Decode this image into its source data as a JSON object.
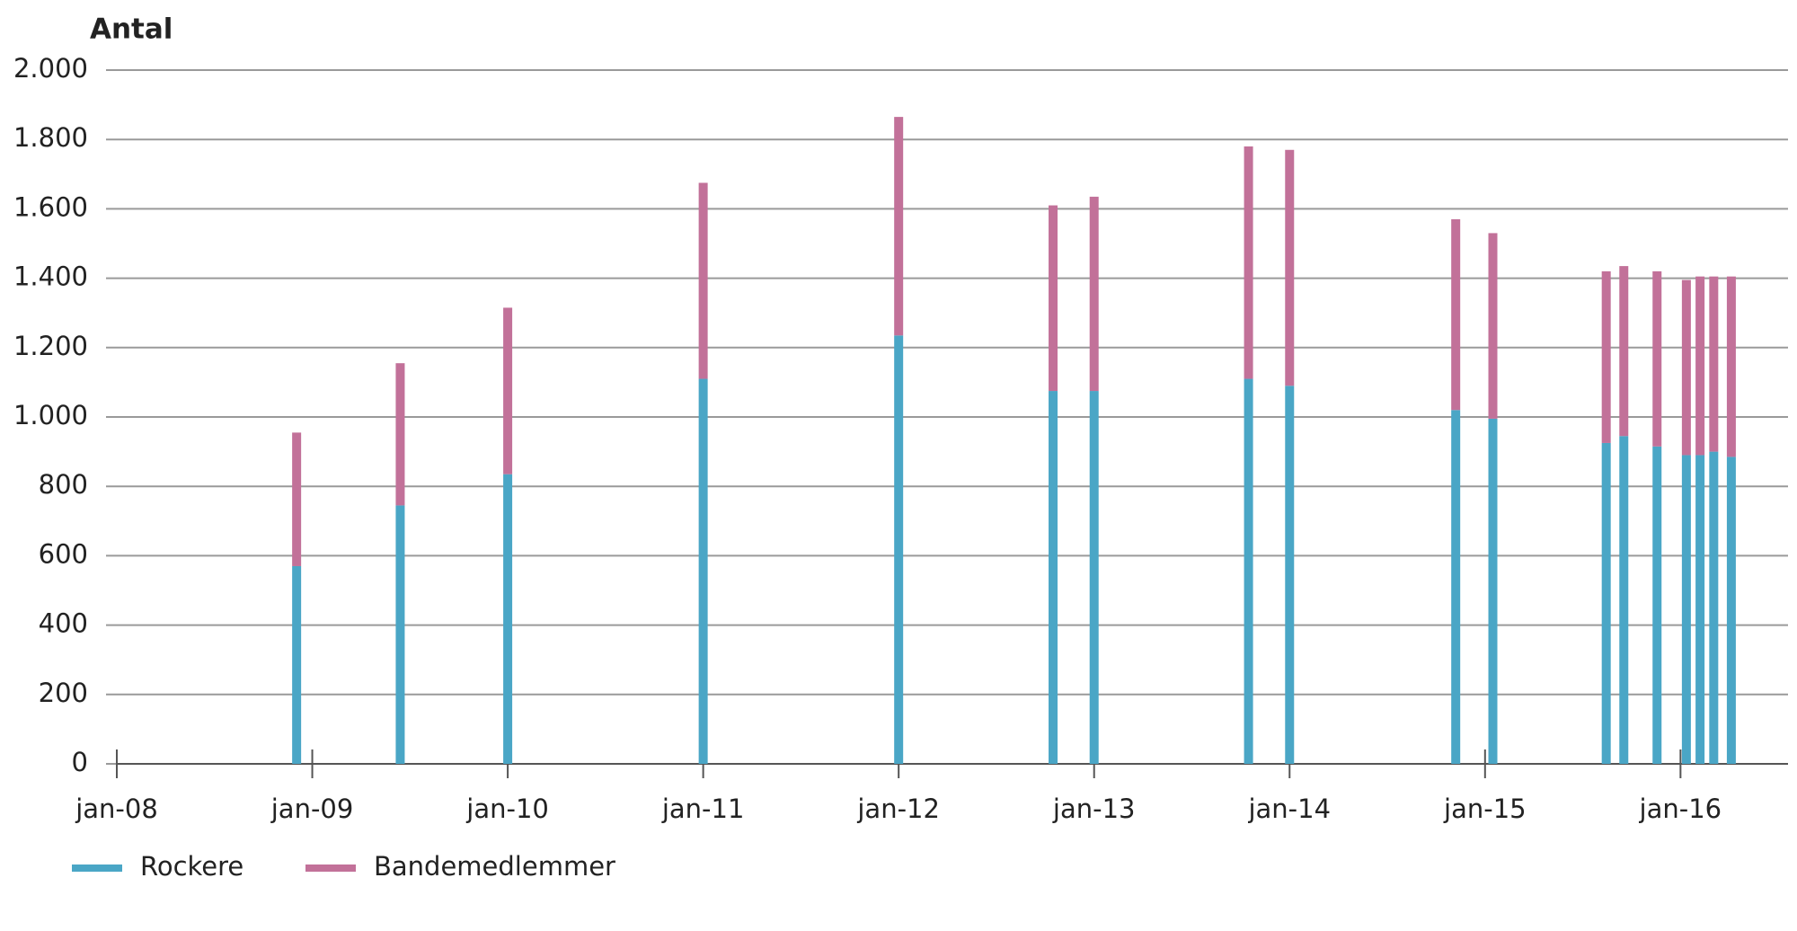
{
  "chart_data": {
    "type": "stacked_bar",
    "y_label": "Antal",
    "x": [
      2008.92,
      2009.45,
      2010.0,
      2011.0,
      2012.0,
      2012.79,
      2013.0,
      2013.79,
      2014.0,
      2014.85,
      2015.04,
      2015.62,
      2015.71,
      2015.88,
      2016.03,
      2016.1,
      2016.17,
      2016.26
    ],
    "series": [
      {
        "name": "Rockere",
        "color": "#4aa6c6",
        "values": [
          570,
          745,
          835,
          1110,
          1235,
          1075,
          1075,
          1110,
          1090,
          1020,
          995,
          925,
          945,
          915,
          890,
          890,
          900,
          885
        ]
      },
      {
        "name": "Bandemedlemmer",
        "color": "#c27199",
        "values": [
          385,
          410,
          480,
          565,
          630,
          535,
          560,
          670,
          680,
          550,
          535,
          495,
          490,
          505,
          505,
          515,
          505,
          520
        ]
      }
    ],
    "xlim": [
      2008,
      2016.55
    ],
    "xticks": [
      {
        "value": 2008,
        "label": "jan-08"
      },
      {
        "value": 2009,
        "label": "jan-09"
      },
      {
        "value": 2010,
        "label": "jan-10"
      },
      {
        "value": 2011,
        "label": "jan-11"
      },
      {
        "value": 2012,
        "label": "jan-12"
      },
      {
        "value": 2013,
        "label": "jan-13"
      },
      {
        "value": 2014,
        "label": "jan-14"
      },
      {
        "value": 2015,
        "label": "jan-15"
      },
      {
        "value": 2016,
        "label": "jan-16"
      }
    ],
    "ylim": [
      0,
      2000
    ],
    "yticks": [
      0,
      200,
      400,
      600,
      800,
      {
        "value": 1000,
        "label": "1.000"
      },
      {
        "value": 1200,
        "label": "1.200"
      },
      {
        "value": 1400,
        "label": "1.400"
      },
      {
        "value": 1600,
        "label": "1.600"
      },
      {
        "value": 1800,
        "label": "1.800"
      },
      {
        "value": 2000,
        "label": "2.000"
      }
    ],
    "grid": true,
    "legend": "bottom-left"
  }
}
